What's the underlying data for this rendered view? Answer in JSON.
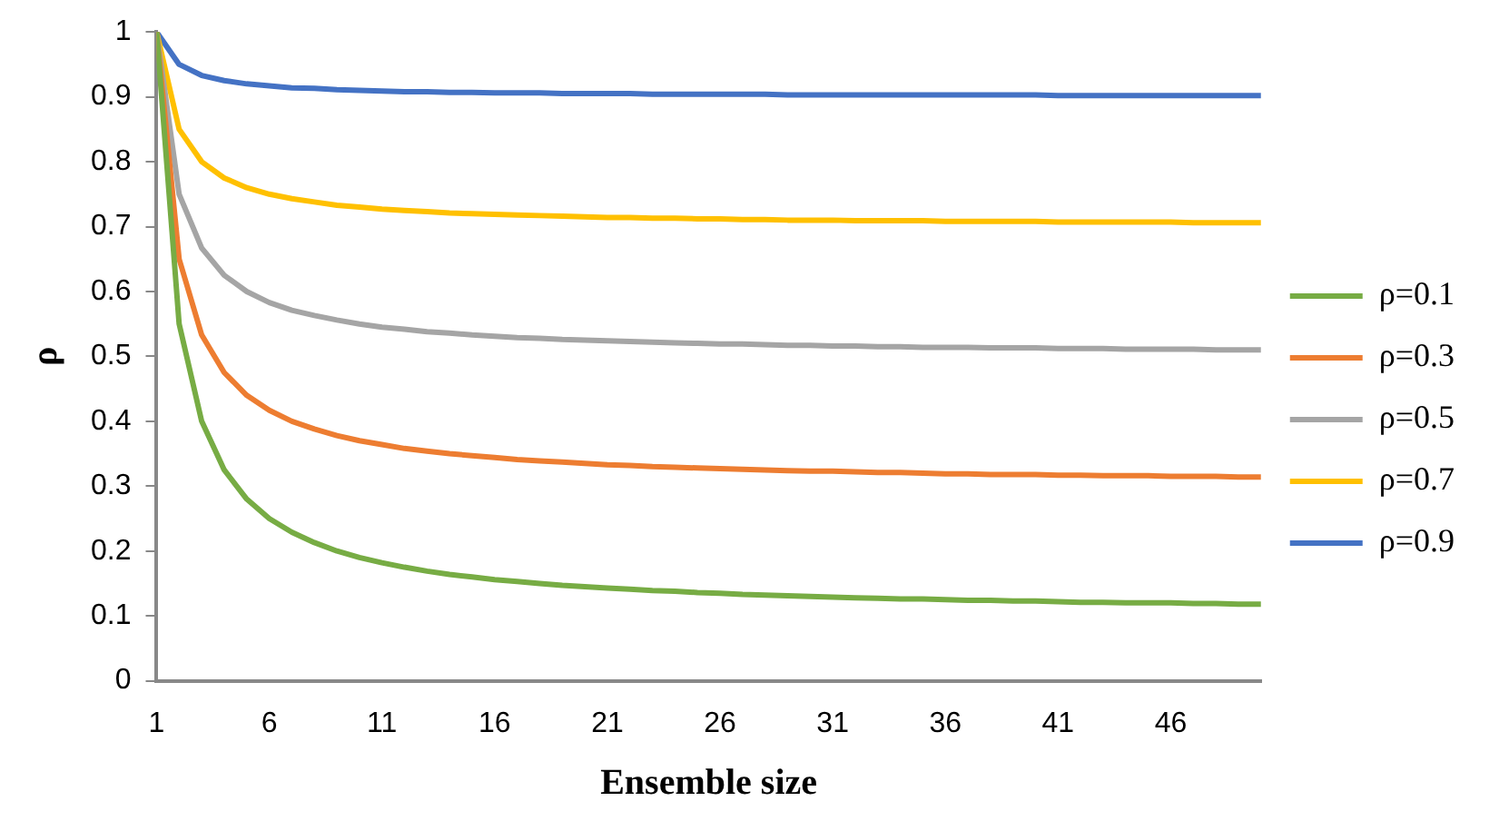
{
  "chart_data": {
    "type": "line",
    "xlabel": "Ensemble size",
    "ylabel": "ρ",
    "x": [
      1,
      2,
      3,
      4,
      5,
      6,
      7,
      8,
      9,
      10,
      11,
      12,
      13,
      14,
      15,
      16,
      17,
      18,
      19,
      20,
      21,
      22,
      23,
      24,
      25,
      26,
      27,
      28,
      29,
      30,
      31,
      32,
      33,
      34,
      35,
      36,
      37,
      38,
      39,
      40,
      41,
      42,
      43,
      44,
      45,
      46,
      47,
      48,
      49,
      50
    ],
    "xlim": [
      1,
      50
    ],
    "xticks": [
      1,
      6,
      11,
      16,
      21,
      26,
      31,
      36,
      41,
      46
    ],
    "ylim": [
      0,
      1
    ],
    "yticks": [
      0,
      0.1,
      0.2,
      0.3,
      0.4,
      0.5,
      0.6,
      0.7,
      0.8,
      0.9,
      1
    ],
    "grid": false,
    "legend": "right",
    "marker": "none",
    "line_style": "solid",
    "series": [
      {
        "name": "ρ=0.1",
        "color": "#77ac44",
        "values": [
          1,
          0.55,
          0.4,
          0.325,
          0.28,
          0.25,
          0.229,
          0.213,
          0.2,
          0.19,
          0.182,
          0.175,
          0.169,
          0.164,
          0.16,
          0.156,
          0.153,
          0.15,
          0.147,
          0.145,
          0.143,
          0.141,
          0.139,
          0.138,
          0.136,
          0.135,
          0.133,
          0.132,
          0.131,
          0.13,
          0.129,
          0.128,
          0.127,
          0.126,
          0.126,
          0.125,
          0.124,
          0.124,
          0.123,
          0.123,
          0.122,
          0.121,
          0.121,
          0.12,
          0.12,
          0.12,
          0.119,
          0.119,
          0.118,
          0.118
        ]
      },
      {
        "name": "ρ=0.3",
        "color": "#ed7d31",
        "values": [
          1,
          0.65,
          0.533,
          0.475,
          0.44,
          0.417,
          0.4,
          0.388,
          0.378,
          0.37,
          0.364,
          0.358,
          0.354,
          0.35,
          0.347,
          0.344,
          0.341,
          0.339,
          0.337,
          0.335,
          0.333,
          0.332,
          0.33,
          0.329,
          0.328,
          0.327,
          0.326,
          0.325,
          0.324,
          0.323,
          0.323,
          0.322,
          0.321,
          0.321,
          0.32,
          0.319,
          0.319,
          0.318,
          0.318,
          0.318,
          0.317,
          0.317,
          0.316,
          0.316,
          0.316,
          0.315,
          0.315,
          0.315,
          0.314,
          0.314
        ]
      },
      {
        "name": "ρ=0.5",
        "color": "#a5a5a5",
        "values": [
          1,
          0.75,
          0.667,
          0.625,
          0.6,
          0.583,
          0.571,
          0.563,
          0.556,
          0.55,
          0.545,
          0.542,
          0.538,
          0.536,
          0.533,
          0.531,
          0.529,
          0.528,
          0.526,
          0.525,
          0.524,
          0.523,
          0.522,
          0.521,
          0.52,
          0.519,
          0.519,
          0.518,
          0.517,
          0.517,
          0.516,
          0.516,
          0.515,
          0.515,
          0.514,
          0.514,
          0.514,
          0.513,
          0.513,
          0.513,
          0.512,
          0.512,
          0.512,
          0.511,
          0.511,
          0.511,
          0.511,
          0.51,
          0.51,
          0.51
        ]
      },
      {
        "name": "ρ=0.7",
        "color": "#ffc000",
        "values": [
          1,
          0.85,
          0.8,
          0.775,
          0.76,
          0.75,
          0.743,
          0.738,
          0.733,
          0.73,
          0.727,
          0.725,
          0.723,
          0.721,
          0.72,
          0.719,
          0.718,
          0.717,
          0.716,
          0.715,
          0.714,
          0.714,
          0.713,
          0.713,
          0.712,
          0.712,
          0.711,
          0.711,
          0.71,
          0.71,
          0.71,
          0.709,
          0.709,
          0.709,
          0.709,
          0.708,
          0.708,
          0.708,
          0.708,
          0.708,
          0.707,
          0.707,
          0.707,
          0.707,
          0.707,
          0.707,
          0.706,
          0.706,
          0.706,
          0.706
        ]
      },
      {
        "name": "ρ=0.9",
        "color": "#4472c4",
        "values": [
          1,
          0.95,
          0.933,
          0.925,
          0.92,
          0.917,
          0.914,
          0.913,
          0.911,
          0.91,
          0.909,
          0.908,
          0.908,
          0.907,
          0.907,
          0.906,
          0.906,
          0.906,
          0.905,
          0.905,
          0.905,
          0.905,
          0.904,
          0.904,
          0.904,
          0.904,
          0.904,
          0.904,
          0.903,
          0.903,
          0.903,
          0.903,
          0.903,
          0.903,
          0.903,
          0.903,
          0.903,
          0.903,
          0.903,
          0.903,
          0.902,
          0.902,
          0.902,
          0.902,
          0.902,
          0.902,
          0.902,
          0.902,
          0.902,
          0.902
        ]
      }
    ]
  }
}
